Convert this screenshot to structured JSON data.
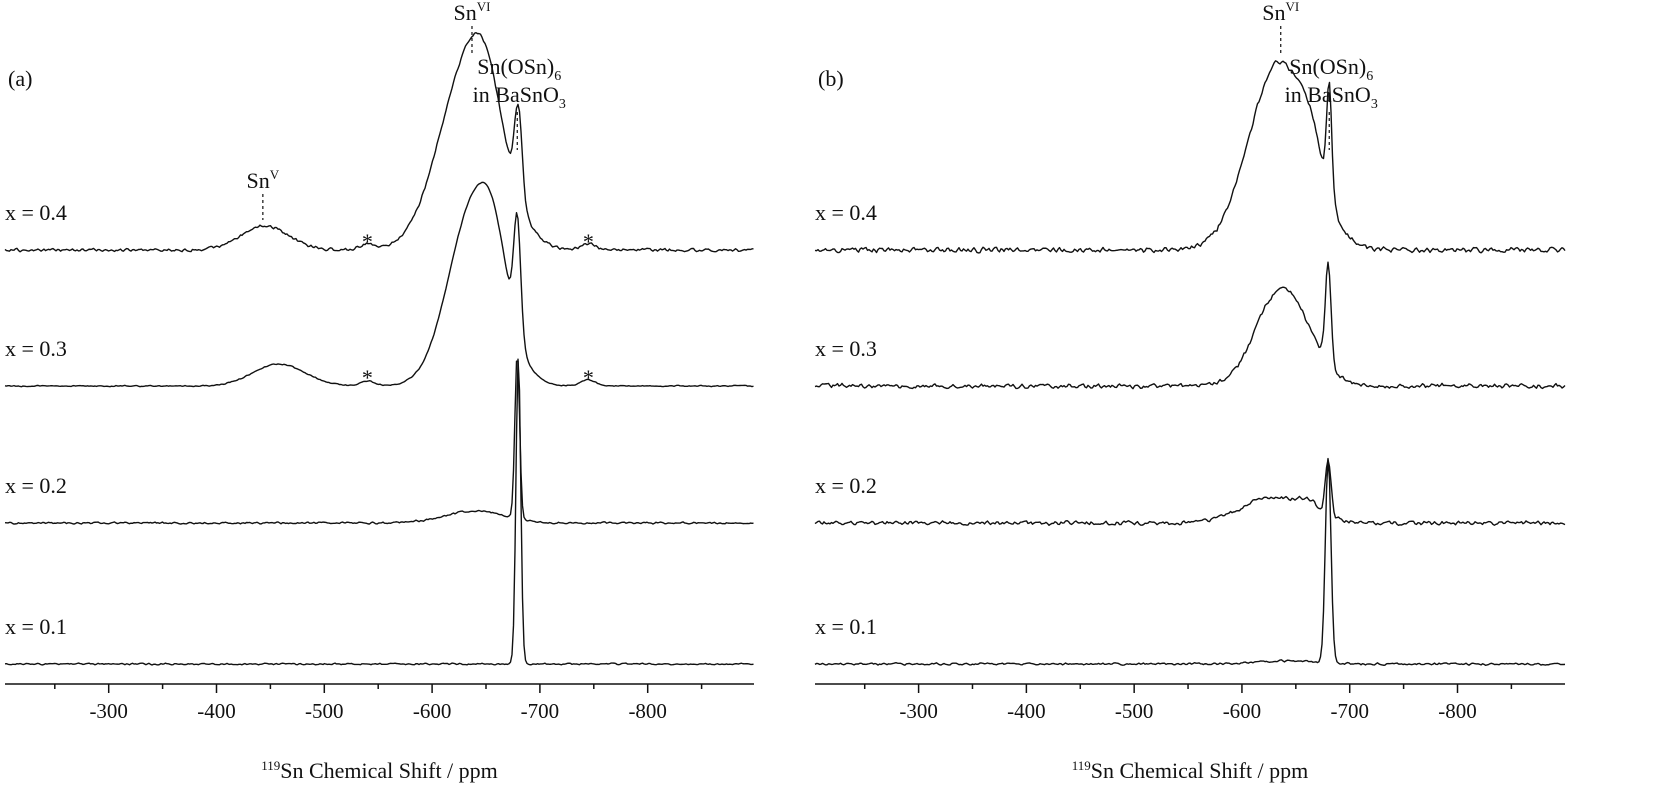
{
  "chart_data": [
    {
      "type": "line",
      "panel_label": "(a)",
      "xlabel_prefix": "119",
      "xlabel_text": "Sn Chemical Shift / ppm",
      "xlim": [
        -200,
        -900
      ],
      "xticks": [
        "-300",
        "-400",
        "-500",
        "-600",
        "-700",
        "-800"
      ],
      "series": [
        {
          "name": "x = 0.4",
          "noise": 0.85,
          "spikes": [],
          "peaks": [
            [
              -635,
              28,
              189
            ],
            [
              -650,
              14,
              40
            ],
            [
              -680,
              3.5,
              90
            ],
            [
              -445,
              22,
              24
            ],
            [
              -540,
              7,
              6
            ],
            [
              -745,
              7,
              6
            ]
          ]
        },
        {
          "name": "x = 0.3",
          "noise": 0.35,
          "spikes": [],
          "peaks": [
            [
              -640,
              24,
              185
            ],
            [
              -658,
              12,
              40
            ],
            [
              -679,
              3.2,
              115
            ],
            [
              -458,
              24,
              22
            ],
            [
              -540,
              7,
              5
            ],
            [
              -745,
              7,
              6
            ]
          ]
        },
        {
          "name": "x = 0.2",
          "noise": 0.55,
          "spikes": [],
          "peaks": [
            [
              -640,
              28,
              12
            ],
            [
              -679,
              2.2,
              165
            ]
          ]
        },
        {
          "name": "x = 0.1",
          "noise": 0.45,
          "spikes": [],
          "peaks": [
            [
              -680,
              2.2,
              308
            ]
          ]
        }
      ],
      "annotations": [
        {
          "base": "Sn",
          "sup": "V",
          "x": -443
        },
        {
          "base": "Sn",
          "sup": "VI",
          "x": -637
        },
        {
          "lines": [
            {
              "base": "Sn(OSn)",
              "sub": "6"
            },
            {
              "base": "in BaSnO",
              "sub": "3"
            }
          ],
          "x": -679
        }
      ],
      "asterisk": "*",
      "asterisks": [
        {
          "x": -540,
          "series": 0
        },
        {
          "x": -745,
          "series": 0
        },
        {
          "x": -540,
          "series": 1
        },
        {
          "x": -745,
          "series": 1
        }
      ]
    },
    {
      "type": "line",
      "panel_label": "(b)",
      "xlabel_prefix": "119",
      "xlabel_text": "Sn Chemical Shift / ppm",
      "xlim": [
        -200,
        -900
      ],
      "xticks": [
        "-300",
        "-400",
        "-500",
        "-600",
        "-700",
        "-800"
      ],
      "series": [
        {
          "name": "x = 0.4",
          "noise": 1.4,
          "spikes": [],
          "peaks": [
            [
              -635,
              28,
              188
            ],
            [
              -665,
              10,
              30
            ],
            [
              -681,
              2.4,
              110
            ]
          ]
        },
        {
          "name": "x = 0.3",
          "noise": 1.3,
          "spikes": [],
          "peaks": [
            [
              -640,
              24,
              92
            ],
            [
              -620,
              16,
              10
            ],
            [
              -680,
              2.6,
              102
            ]
          ]
        },
        {
          "name": "x = 0.2",
          "noise": 1.1,
          "spikes": [],
          "peaks": [
            [
              -630,
              30,
              26
            ],
            [
              -662,
              8,
              10
            ],
            [
              -680,
              2.6,
              58
            ]
          ]
        },
        {
          "name": "x = 0.1",
          "noise": 0.6,
          "spikes": [],
          "peaks": [
            [
              -640,
              30,
              3
            ],
            [
              -680,
              2.6,
              205
            ]
          ]
        }
      ],
      "annotations": [
        {
          "base": "Sn",
          "sup": "VI",
          "x": -636
        },
        {
          "lines": [
            {
              "base": "Sn(OSn)",
              "sub": "6"
            },
            {
              "base": "in BaSnO",
              "sub": "3"
            }
          ],
          "x": -681
        }
      ],
      "asterisk": "*",
      "asterisks": []
    }
  ]
}
